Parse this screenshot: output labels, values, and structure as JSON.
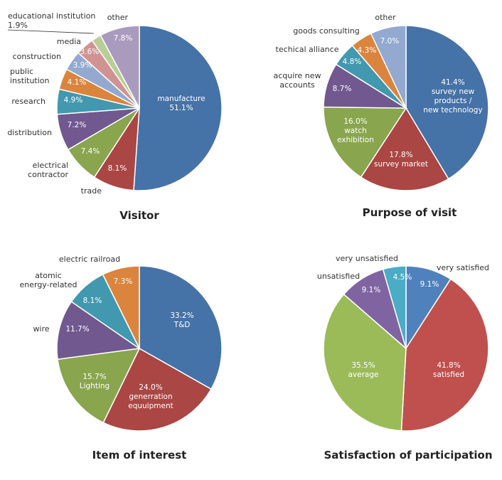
{
  "chart_data": [
    {
      "type": "pie",
      "title": "Visitor",
      "slices": [
        {
          "label": "manufacture",
          "value": "51.1%",
          "pct": 51.1,
          "color": "#4572A7"
        },
        {
          "label": "trade",
          "value": "8.1%",
          "pct": 8.1,
          "color": "#AA4643"
        },
        {
          "label": "electrical contractor",
          "value": "7.4%",
          "pct": 7.4,
          "color": "#89A54E"
        },
        {
          "label": "distribution",
          "value": "7.2%",
          "pct": 7.2,
          "color": "#71588F"
        },
        {
          "label": "research",
          "value": "4.9%",
          "pct": 4.9,
          "color": "#4198AF"
        },
        {
          "label": "public institution",
          "value": "4.1%",
          "pct": 4.1,
          "color": "#DB843D"
        },
        {
          "label": "construction",
          "value": "3.9%",
          "pct": 3.9,
          "color": "#93A9CF"
        },
        {
          "label": "media",
          "value": "3.6%",
          "pct": 3.6,
          "color": "#D19392"
        },
        {
          "label": "educational institution",
          "value": "1.9%",
          "pct": 1.9,
          "color": "#B9CD96"
        },
        {
          "label": "other",
          "value": "7.8%",
          "pct": 7.8,
          "color": "#A99BBD"
        }
      ]
    },
    {
      "type": "pie",
      "title": "Purpose of visit",
      "slices": [
        {
          "label": "survey new products / new technology",
          "value": "41.4%",
          "pct": 41.4,
          "color": "#4572A7"
        },
        {
          "label": "survey market",
          "value": "17.8%",
          "pct": 17.8,
          "color": "#AA4643"
        },
        {
          "label": "watch exhibition",
          "value": "16.0%",
          "pct": 16.0,
          "color": "#89A54E"
        },
        {
          "label": "acquire new accounts",
          "value": "8.7%",
          "pct": 8.7,
          "color": "#71588F"
        },
        {
          "label": "techical alliance",
          "value": "4.8%",
          "pct": 4.8,
          "color": "#4198AF"
        },
        {
          "label": "goods consulting",
          "value": "4.3%",
          "pct": 4.3,
          "color": "#DB843D"
        },
        {
          "label": "other",
          "value": "7.0%",
          "pct": 7.0,
          "color": "#93A9CF"
        }
      ]
    },
    {
      "type": "pie",
      "title": "Item of interest",
      "slices": [
        {
          "label": "T&D",
          "value": "33.2%",
          "pct": 33.2,
          "color": "#4572A7"
        },
        {
          "label": "generration equuipment",
          "value": "24.0%",
          "pct": 24.0,
          "color": "#AA4643"
        },
        {
          "label": "Lighting",
          "value": "15.7%",
          "pct": 15.7,
          "color": "#89A54E"
        },
        {
          "label": "wire",
          "value": "11.7%",
          "pct": 11.7,
          "color": "#71588F"
        },
        {
          "label": "atomic energy-related",
          "value": "8.1%",
          "pct": 8.1,
          "color": "#4198AF"
        },
        {
          "label": "electric railroad",
          "value": "7.3%",
          "pct": 7.3,
          "color": "#DB843D"
        }
      ]
    },
    {
      "type": "pie",
      "title": "Satisfaction of participation",
      "slices": [
        {
          "label": "very satisfied",
          "value": "9.1%",
          "pct": 9.1,
          "color": "#4F81BD"
        },
        {
          "label": "satisfied",
          "value": "41.8%",
          "pct": 41.8,
          "color": "#C0504D"
        },
        {
          "label": "average",
          "value": "35.5%",
          "pct": 35.5,
          "color": "#9BBB59"
        },
        {
          "label": "unsatisfied",
          "value": "9.1%",
          "pct": 9.1,
          "color": "#8064A2"
        },
        {
          "label": "very unsatisfied",
          "value": "4.5%",
          "pct": 4.5,
          "color": "#4BACC6"
        }
      ]
    }
  ]
}
